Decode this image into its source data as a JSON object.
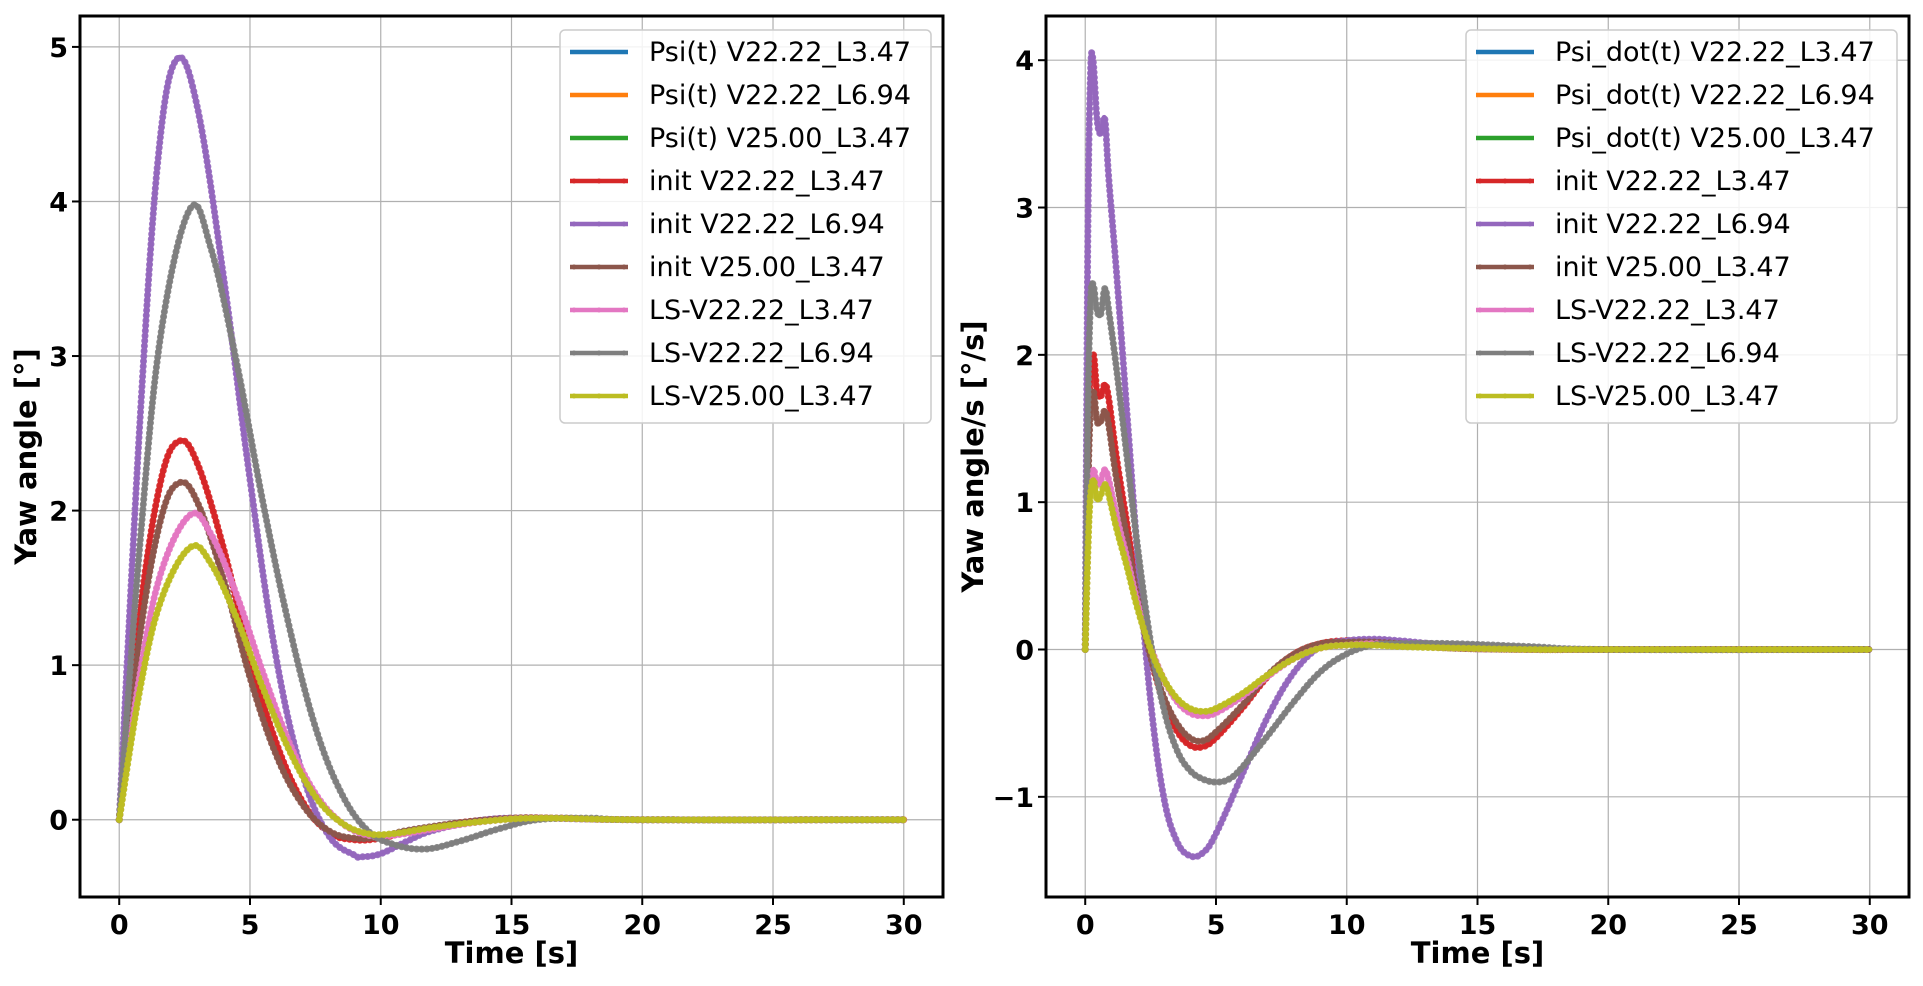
{
  "chart_data": [
    {
      "type": "line",
      "xlabel": "Time [s]",
      "ylabel": "Yaw angle [°]",
      "xlim": [
        -1.5,
        31.5
      ],
      "ylim": [
        -0.5,
        5.2
      ],
      "xticks": [
        0,
        5,
        10,
        15,
        20,
        25,
        30
      ],
      "yticks": [
        0,
        1,
        2,
        3,
        4,
        5
      ],
      "ytick_labels": [
        "0",
        "1",
        "2",
        "3",
        "4",
        "5"
      ],
      "grid": true,
      "legend_position": "upper-right",
      "series": [
        {
          "name": "Psi(t) V22.22_L3.47",
          "color": "#1f77b4",
          "marker": false,
          "x": [
            0,
            0.8,
            1.6,
            2.3,
            3.0,
            4,
            5,
            6,
            7,
            8,
            9,
            10,
            11,
            13,
            15,
            17,
            20,
            30
          ],
          "y": [
            0,
            1.35,
            2.2,
            2.45,
            2.3,
            1.75,
            1.05,
            0.5,
            0.12,
            -0.08,
            -0.13,
            -0.12,
            -0.08,
            -0.02,
            0.01,
            0.01,
            0,
            0
          ]
        },
        {
          "name": "Psi(t) V22.22_L6.94",
          "color": "#ff7f0e",
          "marker": false,
          "x": [
            0,
            0.8,
            1.5,
            2.2,
            3.0,
            4,
            5,
            6,
            7,
            8,
            9,
            9.3,
            10,
            11,
            12,
            14,
            16,
            20,
            30
          ],
          "y": [
            0,
            2.6,
            4.3,
            4.92,
            4.6,
            3.5,
            2.2,
            1.05,
            0.3,
            -0.1,
            -0.23,
            -0.24,
            -0.22,
            -0.14,
            -0.07,
            0,
            0.01,
            0,
            0
          ]
        },
        {
          "name": "Psi(t) V25.00_L3.47",
          "color": "#2ca02c",
          "marker": false,
          "x": [
            0,
            0.8,
            1.6,
            2.3,
            3.0,
            4,
            5,
            6,
            7,
            8,
            9,
            10,
            11,
            13,
            15,
            17,
            20,
            30
          ],
          "y": [
            0,
            1.2,
            1.95,
            2.18,
            2.05,
            1.55,
            0.92,
            0.42,
            0.1,
            -0.07,
            -0.12,
            -0.11,
            -0.07,
            -0.02,
            0.01,
            0.01,
            0,
            0
          ]
        },
        {
          "name": "init V22.22_L3.47",
          "color": "#d62728",
          "marker": true,
          "x": [
            0,
            0.8,
            1.6,
            2.3,
            3.0,
            4,
            5,
            6,
            7,
            8,
            9,
            10,
            11,
            13,
            15,
            17,
            20,
            30
          ],
          "y": [
            0,
            1.35,
            2.2,
            2.45,
            2.3,
            1.75,
            1.05,
            0.5,
            0.12,
            -0.08,
            -0.13,
            -0.12,
            -0.08,
            -0.02,
            0.01,
            0.01,
            0,
            0
          ]
        },
        {
          "name": "init V22.22_L6.94",
          "color": "#9467bd",
          "marker": true,
          "x": [
            0,
            0.8,
            1.5,
            2.2,
            3.0,
            4,
            5,
            6,
            7,
            8,
            9,
            9.3,
            10,
            11,
            12,
            14,
            16,
            20,
            30
          ],
          "y": [
            0,
            2.6,
            4.3,
            4.92,
            4.6,
            3.5,
            2.2,
            1.05,
            0.3,
            -0.1,
            -0.23,
            -0.24,
            -0.22,
            -0.14,
            -0.07,
            0,
            0.01,
            0,
            0
          ]
        },
        {
          "name": "init V25.00_L3.47",
          "color": "#8c564b",
          "marker": true,
          "x": [
            0,
            0.8,
            1.6,
            2.3,
            3.0,
            4,
            5,
            6,
            7,
            8,
            9,
            10,
            11,
            13,
            15,
            17,
            20,
            30
          ],
          "y": [
            0,
            1.2,
            1.95,
            2.18,
            2.05,
            1.55,
            0.92,
            0.42,
            0.1,
            -0.07,
            -0.12,
            -0.11,
            -0.07,
            -0.02,
            0.01,
            0.01,
            0,
            0
          ]
        },
        {
          "name": "LS-V22.22_L3.47",
          "color": "#e377c2",
          "marker": true,
          "x": [
            0,
            0.8,
            1.6,
            2.7,
            3.5,
            4.5,
            5.5,
            6.5,
            7.5,
            8.5,
            9.5,
            10.5,
            12,
            14,
            16,
            20,
            30
          ],
          "y": [
            0,
            0.95,
            1.6,
            1.97,
            1.85,
            1.45,
            0.95,
            0.5,
            0.17,
            -0.02,
            -0.1,
            -0.1,
            -0.06,
            -0.01,
            0.01,
            0,
            0
          ]
        },
        {
          "name": "LS-V22.22_L6.94",
          "color": "#7f7f7f",
          "marker": true,
          "x": [
            0,
            0.8,
            1.6,
            2.7,
            3.5,
            4.5,
            5.5,
            6.5,
            7.5,
            8.5,
            9.5,
            10.5,
            11.7,
            13,
            14.5,
            16,
            18,
            20,
            30
          ],
          "y": [
            0,
            1.8,
            3.15,
            3.95,
            3.7,
            2.95,
            2.05,
            1.25,
            0.6,
            0.17,
            -0.07,
            -0.16,
            -0.19,
            -0.14,
            -0.06,
            0,
            0.01,
            0,
            0
          ]
        },
        {
          "name": "LS-V25.00_L3.47",
          "color": "#bcbd22",
          "marker": true,
          "x": [
            0,
            0.8,
            1.6,
            2.7,
            3.5,
            4.5,
            5.5,
            6.5,
            7.5,
            8.5,
            9.5,
            10.5,
            12,
            14,
            16,
            20,
            30
          ],
          "y": [
            0,
            0.85,
            1.42,
            1.76,
            1.66,
            1.3,
            0.85,
            0.45,
            0.15,
            -0.02,
            -0.09,
            -0.09,
            -0.05,
            -0.01,
            0.01,
            0,
            0
          ]
        }
      ]
    },
    {
      "type": "line",
      "xlabel": "Time [s]",
      "ylabel": "Yaw angle/s [°/s]",
      "xlim": [
        -1.5,
        31.5
      ],
      "ylim": [
        -1.68,
        4.3
      ],
      "xticks": [
        0,
        5,
        10,
        15,
        20,
        25,
        30
      ],
      "yticks": [
        -1,
        0,
        1,
        2,
        3,
        4
      ],
      "ytick_labels": [
        "−1",
        "0",
        "1",
        "2",
        "3",
        "4"
      ],
      "grid": true,
      "legend_position": "upper-right",
      "series": [
        {
          "name": "Psi_dot(t) V22.22_L3.47",
          "color": "#1f77b4",
          "marker": false,
          "x": [
            0,
            0.15,
            0.3,
            0.45,
            0.6,
            0.75,
            0.9,
            1.2,
            1.6,
            2,
            2.5,
            3,
            3.5,
            4,
            4.5,
            5,
            6,
            7,
            8,
            9,
            10,
            11,
            12,
            14,
            17,
            20,
            30
          ],
          "y": [
            0,
            1.6,
            2.0,
            1.75,
            1.72,
            1.8,
            1.7,
            1.3,
            0.85,
            0.4,
            -0.05,
            -0.35,
            -0.55,
            -0.65,
            -0.66,
            -0.6,
            -0.4,
            -0.18,
            -0.03,
            0.04,
            0.06,
            0.05,
            0.04,
            0.01,
            0,
            0,
            0
          ]
        },
        {
          "name": "Psi_dot(t) V22.22_L6.94",
          "color": "#ff7f0e",
          "marker": false,
          "x": [
            0,
            0.1,
            0.2,
            0.3,
            0.45,
            0.6,
            0.75,
            0.9,
            1.2,
            1.6,
            2,
            2.5,
            3,
            3.5,
            4,
            4.5,
            5,
            6,
            7,
            8,
            9,
            10,
            11,
            12,
            14,
            17,
            20,
            30
          ],
          "y": [
            0,
            2.8,
            3.9,
            4.0,
            3.6,
            3.5,
            3.6,
            3.2,
            2.55,
            1.6,
            0.65,
            -0.35,
            -1.0,
            -1.3,
            -1.4,
            -1.38,
            -1.25,
            -0.85,
            -0.45,
            -0.15,
            0.02,
            0.06,
            0.07,
            0.06,
            0.03,
            0.01,
            0,
            0
          ]
        },
        {
          "name": "Psi_dot(t) V25.00_L3.47",
          "color": "#2ca02c",
          "marker": false,
          "x": [
            0,
            0.15,
            0.3,
            0.45,
            0.6,
            0.75,
            0.9,
            1.2,
            1.6,
            2,
            2.5,
            3,
            3.5,
            4,
            4.5,
            5,
            6,
            7,
            8,
            9,
            10,
            11,
            12,
            14,
            17,
            20,
            30
          ],
          "y": [
            0,
            1.4,
            1.75,
            1.55,
            1.55,
            1.62,
            1.52,
            1.15,
            0.75,
            0.35,
            -0.05,
            -0.32,
            -0.5,
            -0.6,
            -0.62,
            -0.56,
            -0.38,
            -0.17,
            -0.03,
            0.04,
            0.05,
            0.05,
            0.04,
            0.01,
            0,
            0,
            0
          ]
        },
        {
          "name": "init V22.22_L3.47",
          "color": "#d62728",
          "marker": true,
          "x": [
            0,
            0.15,
            0.3,
            0.45,
            0.6,
            0.75,
            0.9,
            1.2,
            1.6,
            2,
            2.5,
            3,
            3.5,
            4,
            4.5,
            5,
            6,
            7,
            8,
            9,
            10,
            11,
            12,
            14,
            17,
            20,
            30
          ],
          "y": [
            0,
            1.6,
            2.0,
            1.75,
            1.72,
            1.8,
            1.7,
            1.3,
            0.85,
            0.4,
            -0.05,
            -0.35,
            -0.55,
            -0.65,
            -0.66,
            -0.6,
            -0.4,
            -0.18,
            -0.03,
            0.04,
            0.06,
            0.05,
            0.04,
            0.01,
            0,
            0,
            0
          ]
        },
        {
          "name": "init V22.22_L6.94",
          "color": "#9467bd",
          "marker": true,
          "x": [
            0,
            0.1,
            0.2,
            0.3,
            0.45,
            0.6,
            0.75,
            0.9,
            1.2,
            1.6,
            2,
            2.5,
            3,
            3.5,
            4,
            4.5,
            5,
            6,
            7,
            8,
            9,
            10,
            11,
            12,
            14,
            17,
            20,
            30
          ],
          "y": [
            0,
            2.8,
            3.9,
            4.0,
            3.6,
            3.5,
            3.6,
            3.2,
            2.55,
            1.6,
            0.65,
            -0.35,
            -1.0,
            -1.3,
            -1.4,
            -1.38,
            -1.25,
            -0.85,
            -0.45,
            -0.15,
            0.02,
            0.06,
            0.07,
            0.06,
            0.03,
            0.01,
            0,
            0
          ]
        },
        {
          "name": "init V25.00_L3.47",
          "color": "#8c564b",
          "marker": true,
          "x": [
            0,
            0.15,
            0.3,
            0.45,
            0.6,
            0.75,
            0.9,
            1.2,
            1.6,
            2,
            2.5,
            3,
            3.5,
            4,
            4.5,
            5,
            6,
            7,
            8,
            9,
            10,
            11,
            12,
            14,
            17,
            20,
            30
          ],
          "y": [
            0,
            1.4,
            1.75,
            1.55,
            1.55,
            1.62,
            1.52,
            1.15,
            0.75,
            0.35,
            -0.05,
            -0.32,
            -0.5,
            -0.6,
            -0.62,
            -0.56,
            -0.38,
            -0.17,
            -0.03,
            0.04,
            0.05,
            0.05,
            0.04,
            0.01,
            0,
            0,
            0
          ]
        },
        {
          "name": "LS-V22.22_L3.47",
          "color": "#e377c2",
          "marker": true,
          "x": [
            0,
            0.15,
            0.3,
            0.45,
            0.6,
            0.75,
            0.9,
            1.2,
            1.6,
            2,
            2.5,
            3,
            3.5,
            4,
            4.5,
            5,
            6,
            7,
            8,
            9,
            10,
            11,
            12,
            14,
            17,
            20,
            30
          ],
          "y": [
            0,
            1.0,
            1.22,
            1.12,
            1.15,
            1.22,
            1.15,
            0.9,
            0.62,
            0.32,
            0.02,
            -0.2,
            -0.35,
            -0.43,
            -0.45,
            -0.43,
            -0.32,
            -0.18,
            -0.06,
            0.01,
            0.03,
            0.04,
            0.03,
            0.01,
            0,
            0,
            0
          ]
        },
        {
          "name": "LS-V22.22_L6.94",
          "color": "#7f7f7f",
          "marker": true,
          "x": [
            0,
            0.1,
            0.2,
            0.3,
            0.45,
            0.6,
            0.75,
            0.9,
            1.2,
            1.6,
            2,
            2.5,
            3,
            3.5,
            4,
            4.5,
            5,
            5.5,
            6,
            7,
            8,
            9,
            10,
            11,
            12,
            14,
            17,
            20,
            30
          ],
          "y": [
            0,
            1.6,
            2.35,
            2.48,
            2.3,
            2.28,
            2.45,
            2.3,
            1.9,
            1.3,
            0.7,
            0.05,
            -0.4,
            -0.68,
            -0.82,
            -0.88,
            -0.9,
            -0.88,
            -0.8,
            -0.58,
            -0.35,
            -0.15,
            -0.03,
            0.03,
            0.04,
            0.04,
            0.02,
            0,
            0
          ]
        },
        {
          "name": "LS-V25.00_L3.47",
          "color": "#bcbd22",
          "marker": true,
          "x": [
            0,
            0.15,
            0.3,
            0.45,
            0.6,
            0.75,
            0.9,
            1.2,
            1.6,
            2,
            2.5,
            3,
            3.5,
            4,
            4.5,
            5,
            6,
            7,
            8,
            9,
            10,
            11,
            12,
            14,
            17,
            20,
            30
          ],
          "y": [
            0,
            0.9,
            1.15,
            1.02,
            1.05,
            1.12,
            1.05,
            0.82,
            0.56,
            0.28,
            0,
            -0.2,
            -0.33,
            -0.4,
            -0.42,
            -0.4,
            -0.3,
            -0.17,
            -0.06,
            0.01,
            0.03,
            0.03,
            0.02,
            0.01,
            0,
            0,
            0
          ]
        }
      ]
    }
  ]
}
